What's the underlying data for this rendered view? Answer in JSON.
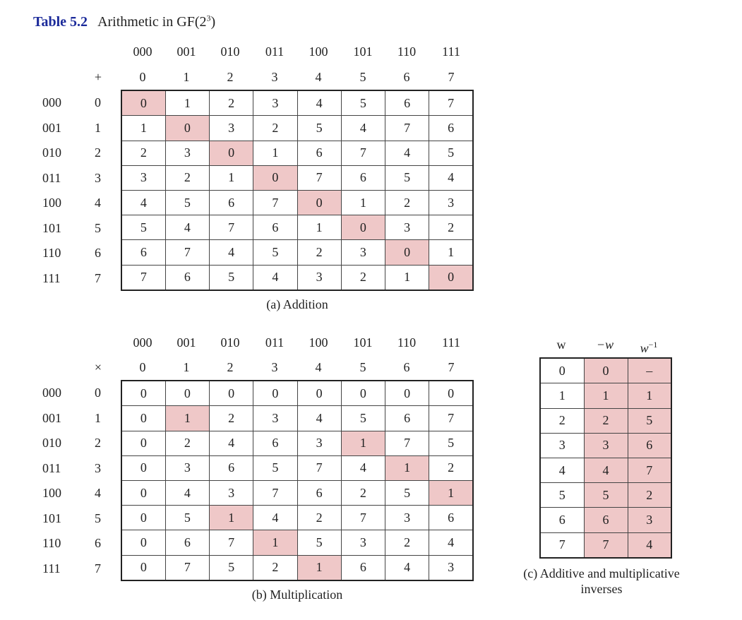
{
  "title": {
    "number": "Table 5.2",
    "text_prefix": "Arithmetic in GF(2",
    "exponent": "3",
    "text_suffix": ")"
  },
  "addition": {
    "operator": "+",
    "col_binary": [
      "000",
      "001",
      "010",
      "011",
      "100",
      "101",
      "110",
      "111"
    ],
    "col_decimal": [
      "0",
      "1",
      "2",
      "3",
      "4",
      "5",
      "6",
      "7"
    ],
    "row_binary": [
      "000",
      "001",
      "010",
      "011",
      "100",
      "101",
      "110",
      "111"
    ],
    "row_decimal": [
      "0",
      "1",
      "2",
      "3",
      "4",
      "5",
      "6",
      "7"
    ],
    "cells": [
      [
        "0",
        "1",
        "2",
        "3",
        "4",
        "5",
        "6",
        "7"
      ],
      [
        "1",
        "0",
        "3",
        "2",
        "5",
        "4",
        "7",
        "6"
      ],
      [
        "2",
        "3",
        "0",
        "1",
        "6",
        "7",
        "4",
        "5"
      ],
      [
        "3",
        "2",
        "1",
        "0",
        "7",
        "6",
        "5",
        "4"
      ],
      [
        "4",
        "5",
        "6",
        "7",
        "0",
        "1",
        "2",
        "3"
      ],
      [
        "5",
        "4",
        "7",
        "6",
        "1",
        "0",
        "3",
        "2"
      ],
      [
        "6",
        "7",
        "4",
        "5",
        "2",
        "3",
        "0",
        "1"
      ],
      [
        "7",
        "6",
        "5",
        "4",
        "3",
        "2",
        "1",
        "0"
      ]
    ],
    "highlight": [
      [
        0,
        0
      ],
      [
        1,
        1
      ],
      [
        2,
        2
      ],
      [
        3,
        3
      ],
      [
        4,
        4
      ],
      [
        5,
        5
      ],
      [
        6,
        6
      ],
      [
        7,
        7
      ]
    ],
    "caption": "(a) Addition"
  },
  "multiplication": {
    "operator": "×",
    "col_binary": [
      "000",
      "001",
      "010",
      "011",
      "100",
      "101",
      "110",
      "111"
    ],
    "col_decimal": [
      "0",
      "1",
      "2",
      "3",
      "4",
      "5",
      "6",
      "7"
    ],
    "row_binary": [
      "000",
      "001",
      "010",
      "011",
      "100",
      "101",
      "110",
      "111"
    ],
    "row_decimal": [
      "0",
      "1",
      "2",
      "3",
      "4",
      "5",
      "6",
      "7"
    ],
    "cells": [
      [
        "0",
        "0",
        "0",
        "0",
        "0",
        "0",
        "0",
        "0"
      ],
      [
        "0",
        "1",
        "2",
        "3",
        "4",
        "5",
        "6",
        "7"
      ],
      [
        "0",
        "2",
        "4",
        "6",
        "3",
        "1",
        "7",
        "5"
      ],
      [
        "0",
        "3",
        "6",
        "5",
        "7",
        "4",
        "1",
        "2"
      ],
      [
        "0",
        "4",
        "3",
        "7",
        "6",
        "2",
        "5",
        "1"
      ],
      [
        "0",
        "5",
        "1",
        "4",
        "2",
        "7",
        "3",
        "6"
      ],
      [
        "0",
        "6",
        "7",
        "1",
        "5",
        "3",
        "2",
        "4"
      ],
      [
        "0",
        "7",
        "5",
        "2",
        "1",
        "6",
        "4",
        "3"
      ]
    ],
    "highlight": [
      [
        1,
        1
      ],
      [
        2,
        5
      ],
      [
        3,
        6
      ],
      [
        4,
        7
      ],
      [
        5,
        2
      ],
      [
        6,
        3
      ],
      [
        7,
        4
      ]
    ],
    "caption": "(b) Multiplication"
  },
  "inverses": {
    "headers": {
      "w": "w",
      "neg": "−w",
      "inv_base": "w",
      "inv_exp": "−1"
    },
    "rows": [
      [
        "0",
        "0",
        "–"
      ],
      [
        "1",
        "1",
        "1"
      ],
      [
        "2",
        "2",
        "5"
      ],
      [
        "3",
        "3",
        "6"
      ],
      [
        "4",
        "4",
        "7"
      ],
      [
        "5",
        "5",
        "2"
      ],
      [
        "6",
        "6",
        "3"
      ],
      [
        "7",
        "7",
        "4"
      ]
    ],
    "caption_line1": "(c) Additive and multiplicative",
    "caption_line2": "inverses",
    "highlight_color": "#efc8c8"
  }
}
